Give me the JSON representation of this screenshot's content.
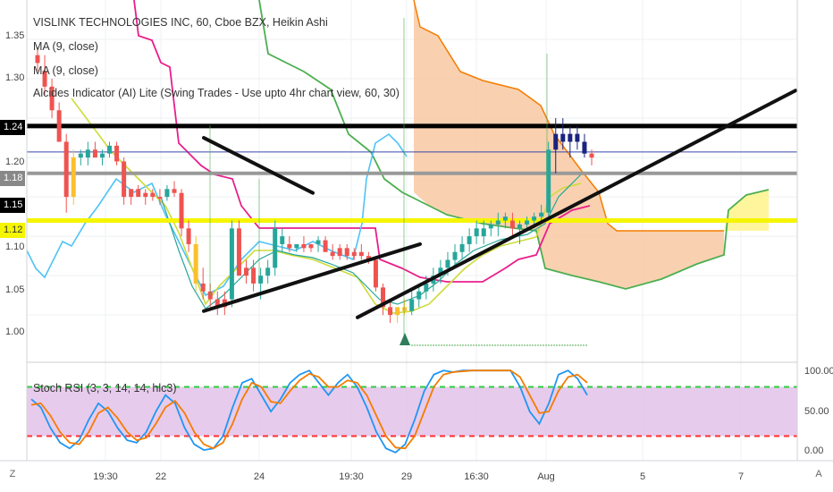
{
  "title": "VISLINK TECHNOLOGIES INC, 60, Cboe BZX, Heikin Ashi",
  "indicators": [
    "MA (9, close)",
    "MA (9, close)",
    "Alcides Indicator (AI) Lite (Swing Trades - Use upto 4hr chart view, 60, 30)"
  ],
  "oscillator_label": "Stoch RSI (3, 3, 14, 14, hlc3)",
  "corner_left": "Z",
  "corner_right": "A",
  "colors": {
    "bull": "#26a69a",
    "bear": "#ef5350",
    "yellow_candle": "#fbc02d",
    "navy": "#1a237e",
    "cloud_fill": "#f8c9a2",
    "yellow_fill": "#fff59d",
    "pink": "#e91e8c",
    "orange": "#f57c00",
    "green": "#4caf50",
    "cyan": "#4fc3f7",
    "lime": "#cddc39",
    "stoch_k": "#2196f3",
    "stoch_d": "#f57c00",
    "band_fill": "#e1bee7"
  },
  "chart_data": [
    {
      "type": "candlestick",
      "title": "VISLINK TECHNOLOGIES INC, 60, Cboe BZX, Heikin Ashi",
      "ylim": [
        0.94,
        1.4
      ],
      "y_ticks": [
        "1.35",
        "1.30",
        "1.20",
        "1.15",
        "1.10",
        "1.05",
        "1.00"
      ],
      "x_ticks": [
        "19:30",
        "22",
        "24",
        "19:30",
        "29",
        "16:30",
        "Aug",
        "5",
        "7"
      ],
      "price_tags": [
        {
          "label": "1.24",
          "value": 1.24,
          "color": "#000000"
        },
        {
          "label": "1.18",
          "value": 1.18,
          "color": "#888888"
        },
        {
          "label": "1.15",
          "value": 1.15,
          "color": "#000000"
        },
        {
          "label": "1.12",
          "value": 1.12,
          "color": "#f5f500"
        }
      ],
      "horizontal_lines": [
        {
          "value": 1.24,
          "color": "#000000",
          "width": 5
        },
        {
          "value": 1.18,
          "color": "#999999",
          "width": 4
        },
        {
          "value": 1.12,
          "color": "#f5f500",
          "width": 5
        },
        {
          "value": 1.207,
          "color": "#3949ab",
          "width": 1
        }
      ],
      "trend_lines": [
        {
          "x": [
            228,
            350
          ],
          "y": [
            1.225,
            1.155
          ]
        },
        {
          "x": [
            228,
            470
          ],
          "y": [
            1.005,
            1.09
          ]
        },
        {
          "x": [
            400,
            890
          ],
          "y": [
            0.997,
            1.285
          ]
        }
      ],
      "candles": [
        {
          "o": 1.33,
          "h": 1.34,
          "l": 1.31,
          "c": 1.32,
          "col": "bear"
        },
        {
          "o": 1.31,
          "h": 1.33,
          "l": 1.28,
          "c": 1.29,
          "col": "bear"
        },
        {
          "o": 1.29,
          "h": 1.3,
          "l": 1.25,
          "c": 1.26,
          "col": "bear"
        },
        {
          "o": 1.26,
          "h": 1.27,
          "l": 1.22,
          "c": 1.22,
          "col": "bear"
        },
        {
          "o": 1.22,
          "h": 1.23,
          "l": 1.13,
          "c": 1.15,
          "col": "bear"
        },
        {
          "o": 1.15,
          "h": 1.21,
          "l": 1.14,
          "c": 1.2,
          "col": "yellow"
        },
        {
          "o": 1.2,
          "h": 1.21,
          "l": 1.19,
          "c": 1.205,
          "col": "bull"
        },
        {
          "o": 1.2,
          "h": 1.22,
          "l": 1.19,
          "c": 1.21,
          "col": "bull"
        },
        {
          "o": 1.21,
          "h": 1.22,
          "l": 1.2,
          "c": 1.2,
          "col": "bear"
        },
        {
          "o": 1.2,
          "h": 1.21,
          "l": 1.19,
          "c": 1.205,
          "col": "bull"
        },
        {
          "o": 1.205,
          "h": 1.22,
          "l": 1.2,
          "c": 1.215,
          "col": "bull"
        },
        {
          "o": 1.215,
          "h": 1.22,
          "l": 1.19,
          "c": 1.195,
          "col": "bear"
        },
        {
          "o": 1.195,
          "h": 1.2,
          "l": 1.14,
          "c": 1.15,
          "col": "bear"
        },
        {
          "o": 1.15,
          "h": 1.16,
          "l": 1.14,
          "c": 1.16,
          "col": "bear"
        },
        {
          "o": 1.16,
          "h": 1.165,
          "l": 1.15,
          "c": 1.15,
          "col": "bear"
        },
        {
          "o": 1.15,
          "h": 1.16,
          "l": 1.14,
          "c": 1.155,
          "col": "bear"
        },
        {
          "o": 1.155,
          "h": 1.16,
          "l": 1.145,
          "c": 1.15,
          "col": "bear"
        },
        {
          "o": 1.15,
          "h": 1.16,
          "l": 1.14,
          "c": 1.15,
          "col": "bear"
        },
        {
          "o": 1.15,
          "h": 1.165,
          "l": 1.145,
          "c": 1.16,
          "col": "bull"
        },
        {
          "o": 1.16,
          "h": 1.17,
          "l": 1.15,
          "c": 1.155,
          "col": "bear"
        },
        {
          "o": 1.155,
          "h": 1.16,
          "l": 1.1,
          "c": 1.11,
          "col": "bear"
        },
        {
          "o": 1.11,
          "h": 1.12,
          "l": 1.08,
          "c": 1.09,
          "col": "bear"
        },
        {
          "o": 1.09,
          "h": 1.1,
          "l": 1.03,
          "c": 1.04,
          "col": "yellow"
        },
        {
          "o": 1.04,
          "h": 1.06,
          "l": 1.02,
          "c": 1.03,
          "col": "bear"
        },
        {
          "o": 1.03,
          "h": 1.04,
          "l": 1.01,
          "c": 1.02,
          "col": "bear"
        },
        {
          "o": 1.02,
          "h": 1.03,
          "l": 1.0,
          "c": 1.01,
          "col": "bear"
        },
        {
          "o": 1.01,
          "h": 1.03,
          "l": 1.0,
          "c": 1.02,
          "col": "bear"
        },
        {
          "o": 1.02,
          "h": 1.12,
          "l": 1.01,
          "c": 1.11,
          "col": "bull"
        },
        {
          "o": 1.11,
          "h": 1.12,
          "l": 1.05,
          "c": 1.05,
          "col": "bear"
        },
        {
          "o": 1.05,
          "h": 1.07,
          "l": 1.04,
          "c": 1.06,
          "col": "bear"
        },
        {
          "o": 1.06,
          "h": 1.07,
          "l": 1.03,
          "c": 1.04,
          "col": "bear"
        },
        {
          "o": 1.04,
          "h": 1.06,
          "l": 1.02,
          "c": 1.05,
          "col": "bull"
        },
        {
          "o": 1.05,
          "h": 1.07,
          "l": 1.04,
          "c": 1.06,
          "col": "bull"
        },
        {
          "o": 1.06,
          "h": 1.12,
          "l": 1.05,
          "c": 1.11,
          "col": "bull"
        },
        {
          "o": 1.1,
          "h": 1.11,
          "l": 1.08,
          "c": 1.09,
          "col": "bull"
        },
        {
          "o": 1.09,
          "h": 1.1,
          "l": 1.08,
          "c": 1.085,
          "col": "bear"
        },
        {
          "o": 1.085,
          "h": 1.09,
          "l": 1.08,
          "c": 1.09,
          "col": "bull"
        },
        {
          "o": 1.09,
          "h": 1.1,
          "l": 1.08,
          "c": 1.085,
          "col": "bear"
        },
        {
          "o": 1.085,
          "h": 1.09,
          "l": 1.08,
          "c": 1.09,
          "col": "bear"
        },
        {
          "o": 1.09,
          "h": 1.1,
          "l": 1.08,
          "c": 1.095,
          "col": "bull"
        },
        {
          "o": 1.095,
          "h": 1.1,
          "l": 1.08,
          "c": 1.08,
          "col": "bear"
        },
        {
          "o": 1.08,
          "h": 1.09,
          "l": 1.07,
          "c": 1.075,
          "col": "bear"
        },
        {
          "o": 1.075,
          "h": 1.09,
          "l": 1.07,
          "c": 1.085,
          "col": "bear"
        },
        {
          "o": 1.085,
          "h": 1.09,
          "l": 1.07,
          "c": 1.075,
          "col": "bear"
        },
        {
          "o": 1.075,
          "h": 1.085,
          "l": 1.07,
          "c": 1.08,
          "col": "bear"
        },
        {
          "o": 1.08,
          "h": 1.09,
          "l": 1.07,
          "c": 1.075,
          "col": "bear"
        },
        {
          "o": 1.075,
          "h": 1.08,
          "l": 1.065,
          "c": 1.07,
          "col": "bear"
        },
        {
          "o": 1.07,
          "h": 1.075,
          "l": 1.03,
          "c": 1.035,
          "col": "bear"
        },
        {
          "o": 1.035,
          "h": 1.04,
          "l": 1.0,
          "c": 1.01,
          "col": "bear"
        },
        {
          "o": 1.01,
          "h": 1.02,
          "l": 0.99,
          "c": 1.0,
          "col": "bear"
        },
        {
          "o": 1.0,
          "h": 1.01,
          "l": 0.99,
          "c": 1.01,
          "col": "yellow"
        },
        {
          "o": 1.01,
          "h": 1.02,
          "l": 1.0,
          "c": 1.005,
          "col": "yellow"
        },
        {
          "o": 1.005,
          "h": 1.03,
          "l": 1.0,
          "c": 1.02,
          "col": "bull"
        },
        {
          "o": 1.02,
          "h": 1.04,
          "l": 1.01,
          "c": 1.03,
          "col": "bull"
        },
        {
          "o": 1.03,
          "h": 1.05,
          "l": 1.02,
          "c": 1.04,
          "col": "bull"
        },
        {
          "o": 1.04,
          "h": 1.06,
          "l": 1.03,
          "c": 1.05,
          "col": "bull"
        },
        {
          "o": 1.05,
          "h": 1.07,
          "l": 1.04,
          "c": 1.06,
          "col": "bull"
        },
        {
          "o": 1.06,
          "h": 1.08,
          "l": 1.05,
          "c": 1.07,
          "col": "bull"
        },
        {
          "o": 1.07,
          "h": 1.09,
          "l": 1.06,
          "c": 1.08,
          "col": "bull"
        },
        {
          "o": 1.08,
          "h": 1.1,
          "l": 1.07,
          "c": 1.09,
          "col": "bull"
        },
        {
          "o": 1.09,
          "h": 1.11,
          "l": 1.08,
          "c": 1.1,
          "col": "bull"
        },
        {
          "o": 1.1,
          "h": 1.12,
          "l": 1.09,
          "c": 1.11,
          "col": "bull"
        },
        {
          "o": 1.1,
          "h": 1.12,
          "l": 1.09,
          "c": 1.11,
          "col": "bull"
        },
        {
          "o": 1.11,
          "h": 1.12,
          "l": 1.1,
          "c": 1.115,
          "col": "bull"
        },
        {
          "o": 1.115,
          "h": 1.13,
          "l": 1.1,
          "c": 1.12,
          "col": "bull"
        },
        {
          "o": 1.12,
          "h": 1.13,
          "l": 1.11,
          "c": 1.125,
          "col": "bull"
        },
        {
          "o": 1.12,
          "h": 1.13,
          "l": 1.1,
          "c": 1.11,
          "col": "bear"
        },
        {
          "o": 1.11,
          "h": 1.12,
          "l": 1.09,
          "c": 1.115,
          "col": "bull"
        },
        {
          "o": 1.115,
          "h": 1.125,
          "l": 1.11,
          "c": 1.12,
          "col": "bull"
        },
        {
          "o": 1.12,
          "h": 1.13,
          "l": 1.11,
          "c": 1.125,
          "col": "bull"
        },
        {
          "o": 1.125,
          "h": 1.14,
          "l": 1.12,
          "c": 1.13,
          "col": "bull"
        },
        {
          "o": 1.13,
          "h": 1.22,
          "l": 1.12,
          "c": 1.21,
          "col": "bull"
        },
        {
          "o": 1.21,
          "h": 1.25,
          "l": 1.18,
          "c": 1.23,
          "col": "navy"
        },
        {
          "o": 1.23,
          "h": 1.25,
          "l": 1.21,
          "c": 1.22,
          "col": "navy"
        },
        {
          "o": 1.22,
          "h": 1.24,
          "l": 1.2,
          "c": 1.23,
          "col": "navy"
        },
        {
          "o": 1.23,
          "h": 1.24,
          "l": 1.21,
          "c": 1.22,
          "col": "navy"
        },
        {
          "o": 1.22,
          "h": 1.23,
          "l": 1.2,
          "c": 1.205,
          "col": "navy"
        },
        {
          "o": 1.205,
          "h": 1.21,
          "l": 1.19,
          "c": 1.2,
          "col": "bear"
        }
      ]
    },
    {
      "type": "line",
      "title": "Stoch RSI (3, 3, 14, 14, hlc3)",
      "ylim": [
        -10,
        110
      ],
      "y_ticks": [
        "100.00",
        "50.00",
        "0.00"
      ],
      "levels": [
        80,
        20
      ],
      "series": [
        {
          "values": [
            65,
            55,
            30,
            12,
            5,
            15,
            40,
            60,
            50,
            30,
            15,
            12,
            25,
            50,
            70,
            60,
            30,
            10,
            3,
            5,
            20,
            55,
            85,
            90,
            70,
            50,
            65,
            85,
            95,
            100,
            85,
            70,
            85,
            95,
            80,
            55,
            25,
            5,
            0,
            10,
            40,
            75,
            95,
            100,
            98,
            100,
            100,
            100,
            100,
            100,
            100,
            80,
            50,
            35,
            60,
            95,
            100,
            90,
            70
          ]
        },
        {
          "values": [
            58,
            60,
            45,
            25,
            12,
            10,
            25,
            48,
            55,
            42,
            25,
            15,
            18,
            35,
            55,
            63,
            48,
            25,
            10,
            5,
            12,
            35,
            65,
            85,
            80,
            62,
            60,
            75,
            88,
            96,
            92,
            80,
            80,
            88,
            85,
            70,
            45,
            20,
            6,
            5,
            20,
            50,
            80,
            95,
            98,
            99,
            100,
            100,
            100,
            100,
            100,
            92,
            70,
            48,
            50,
            75,
            92,
            95,
            85
          ]
        }
      ]
    }
  ]
}
